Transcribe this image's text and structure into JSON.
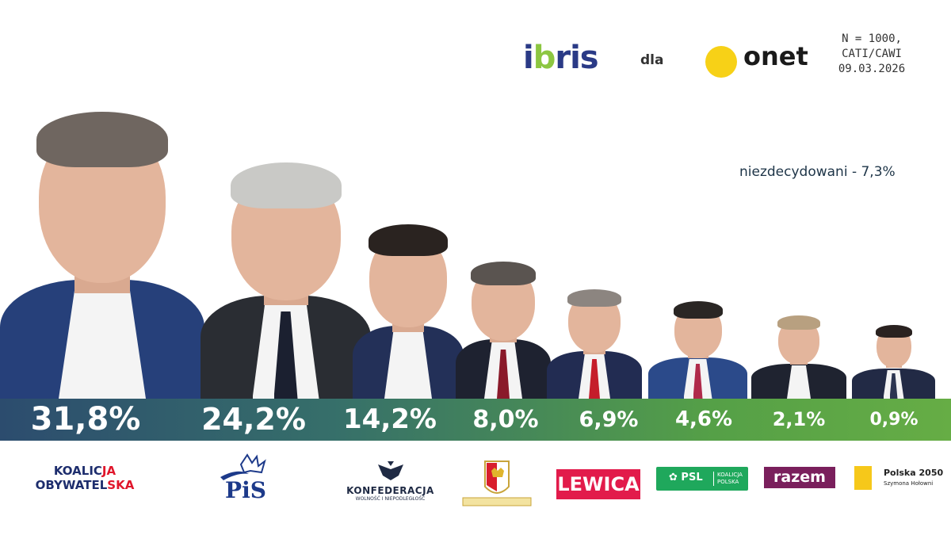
{
  "header": {
    "pollster": "ibris",
    "connector": "dla",
    "client": "onet",
    "survey_info": [
      "N = 1000,",
      "CATI/CAWI",
      "09.03.2026"
    ]
  },
  "undecided": "niezdecydowani - 7,3%",
  "colors": {
    "band_start": "#2c4c6e",
    "band_end": "#66ad45",
    "onet_dot": "#f7d117",
    "ibris_blue": "#2a3a86"
  },
  "chart_data": {
    "type": "bar",
    "categories": [
      "Koalicja Obywatelska",
      "PiS",
      "Konfederacja",
      "Konfederacja Korony Polskiej",
      "Lewica",
      "PSL Koalicja Polska",
      "Razem",
      "Polska 2050"
    ],
    "values": [
      31.8,
      24.2,
      14.2,
      8.0,
      6.9,
      4.6,
      2.1,
      0.9
    ],
    "labels": [
      "31,8%",
      "24,2%",
      "14,2%",
      "8,0%",
      "6,9%",
      "4,6%",
      "2,1%",
      "0,9%"
    ],
    "title": "",
    "xlabel": "",
    "ylabel": "",
    "ylim": [
      0,
      35
    ]
  },
  "parties": {
    "ko": [
      "KOALIC",
      "JA",
      "OBYWATEL",
      "SKA"
    ],
    "pis": "PiS",
    "konfederacja": [
      "KONFEDERACJA",
      "WOLNOŚĆ I NIEPODLEGŁOŚĆ"
    ],
    "lewica": "LEWICA",
    "psl": [
      "PSL",
      "KOALICJA",
      "POLSKA"
    ],
    "razem": "razem",
    "polska2050": [
      "Polska 2050",
      "Szymona Hołowni"
    ]
  }
}
